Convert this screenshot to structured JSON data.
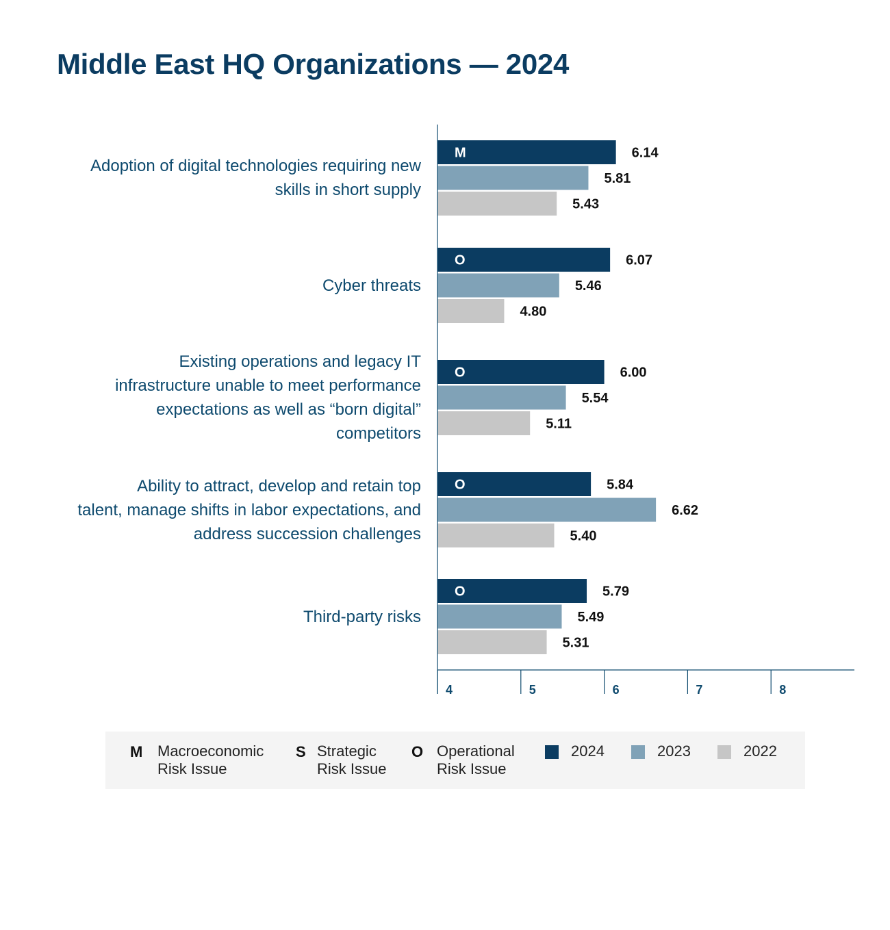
{
  "title": "Middle East HQ Organizations — 2024",
  "chart_data": {
    "type": "bar",
    "orientation": "horizontal",
    "title": "Middle East HQ Organizations — 2024",
    "categories": [
      "Adoption of digital technologies requiring new skills in short supply",
      "Cyber threats",
      "Existing operations and legacy IT infrastructure unable to meet performance expectations as well as “born digital” competitors",
      "Ability to attract, develop and retain top talent, manage shifts in labor expectations, and address succession challenges",
      "Third-party risks"
    ],
    "category_lines": [
      [
        "Adoption of digital technologies requiring new",
        "skills in short supply"
      ],
      [
        "Cyber threats"
      ],
      [
        "Existing operations and legacy IT",
        "infrastructure unable to meet performance",
        "expectations as well as “born digital”",
        "competitors"
      ],
      [
        "Ability to attract, develop and retain top",
        "talent, manage shifts in labor expectations, and",
        "address succession challenges"
      ],
      [
        "Third-party risks"
      ]
    ],
    "risk_codes": [
      "M",
      "O",
      "O",
      "O",
      "O"
    ],
    "series": [
      {
        "name": "2024",
        "color": "#0b3c61",
        "values": [
          6.14,
          6.07,
          6.0,
          5.84,
          5.79
        ],
        "labels": [
          "6.14",
          "6.07",
          "6.00",
          "5.84",
          "5.79"
        ]
      },
      {
        "name": "2023",
        "color": "#80a2b7",
        "values": [
          5.81,
          5.46,
          5.54,
          6.62,
          5.49
        ],
        "labels": [
          "5.81",
          "5.46",
          "5.54",
          "6.62",
          "5.49"
        ]
      },
      {
        "name": "2022",
        "color": "#c6c6c6",
        "values": [
          5.43,
          4.8,
          5.11,
          5.4,
          5.31
        ],
        "labels": [
          "5.43",
          "4.80",
          "5.11",
          "5.40",
          "5.31"
        ]
      }
    ],
    "xlim": [
      4,
      9
    ],
    "xticks": [
      "4",
      "5",
      "6",
      "7",
      "8"
    ],
    "grid": false,
    "legend_position": "bottom"
  },
  "legend": {
    "codes": [
      {
        "code": "M",
        "text": "Macroeconomic\nRisk Issue"
      },
      {
        "code": "S",
        "text": "Strategic\nRisk Issue"
      },
      {
        "code": "O",
        "text": "Operational\nRisk Issue"
      }
    ],
    "years": [
      {
        "label": "2024",
        "color": "#0b3c61"
      },
      {
        "label": "2023",
        "color": "#80a2b7"
      },
      {
        "label": "2022",
        "color": "#c6c6c6"
      }
    ]
  }
}
